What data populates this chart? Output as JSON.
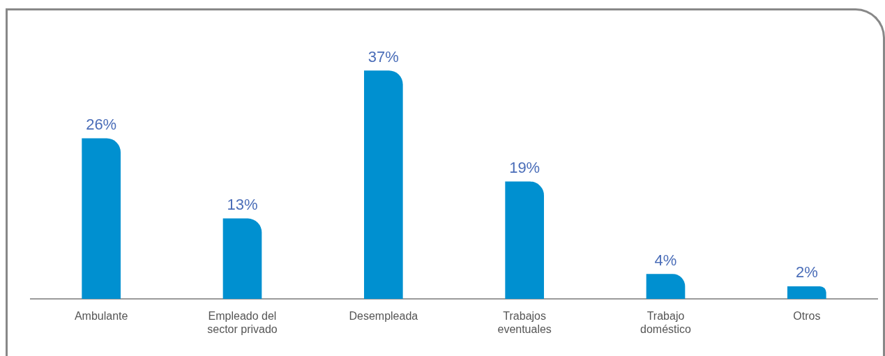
{
  "chart_data": {
    "type": "bar",
    "categories": [
      "Ambulante",
      "Empleado del sector privado",
      "Desempleada",
      "Trabajos eventuales",
      "Trabajo doméstico",
      "Otros"
    ],
    "values": [
      26,
      13,
      37,
      19,
      4,
      2
    ],
    "value_labels": [
      "26%",
      "13%",
      "37%",
      "19%",
      "4%",
      "2%"
    ],
    "color": "#0090d0",
    "tick_labels": "x"
  }
}
